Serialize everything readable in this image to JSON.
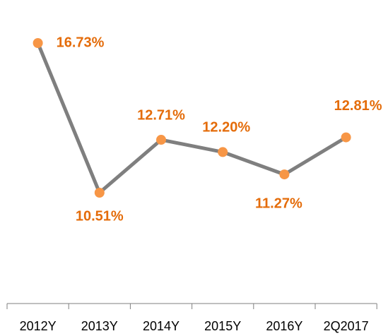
{
  "chart_data": {
    "type": "line",
    "categories": [
      "2012Y",
      "2013Y",
      "2014Y",
      "2015Y",
      "2016Y",
      "2Q2017"
    ],
    "series": [
      {
        "color": "#7f7f7f",
        "marker_color": "#f79646",
        "values": [
          16.73,
          10.51,
          12.71,
          12.2,
          11.27,
          12.81
        ],
        "value_labels": [
          "16.73%",
          "10.51%",
          "12.71%",
          "12.20%",
          "11.27%",
          "12.81%"
        ]
      }
    ],
    "grid": false
  }
}
